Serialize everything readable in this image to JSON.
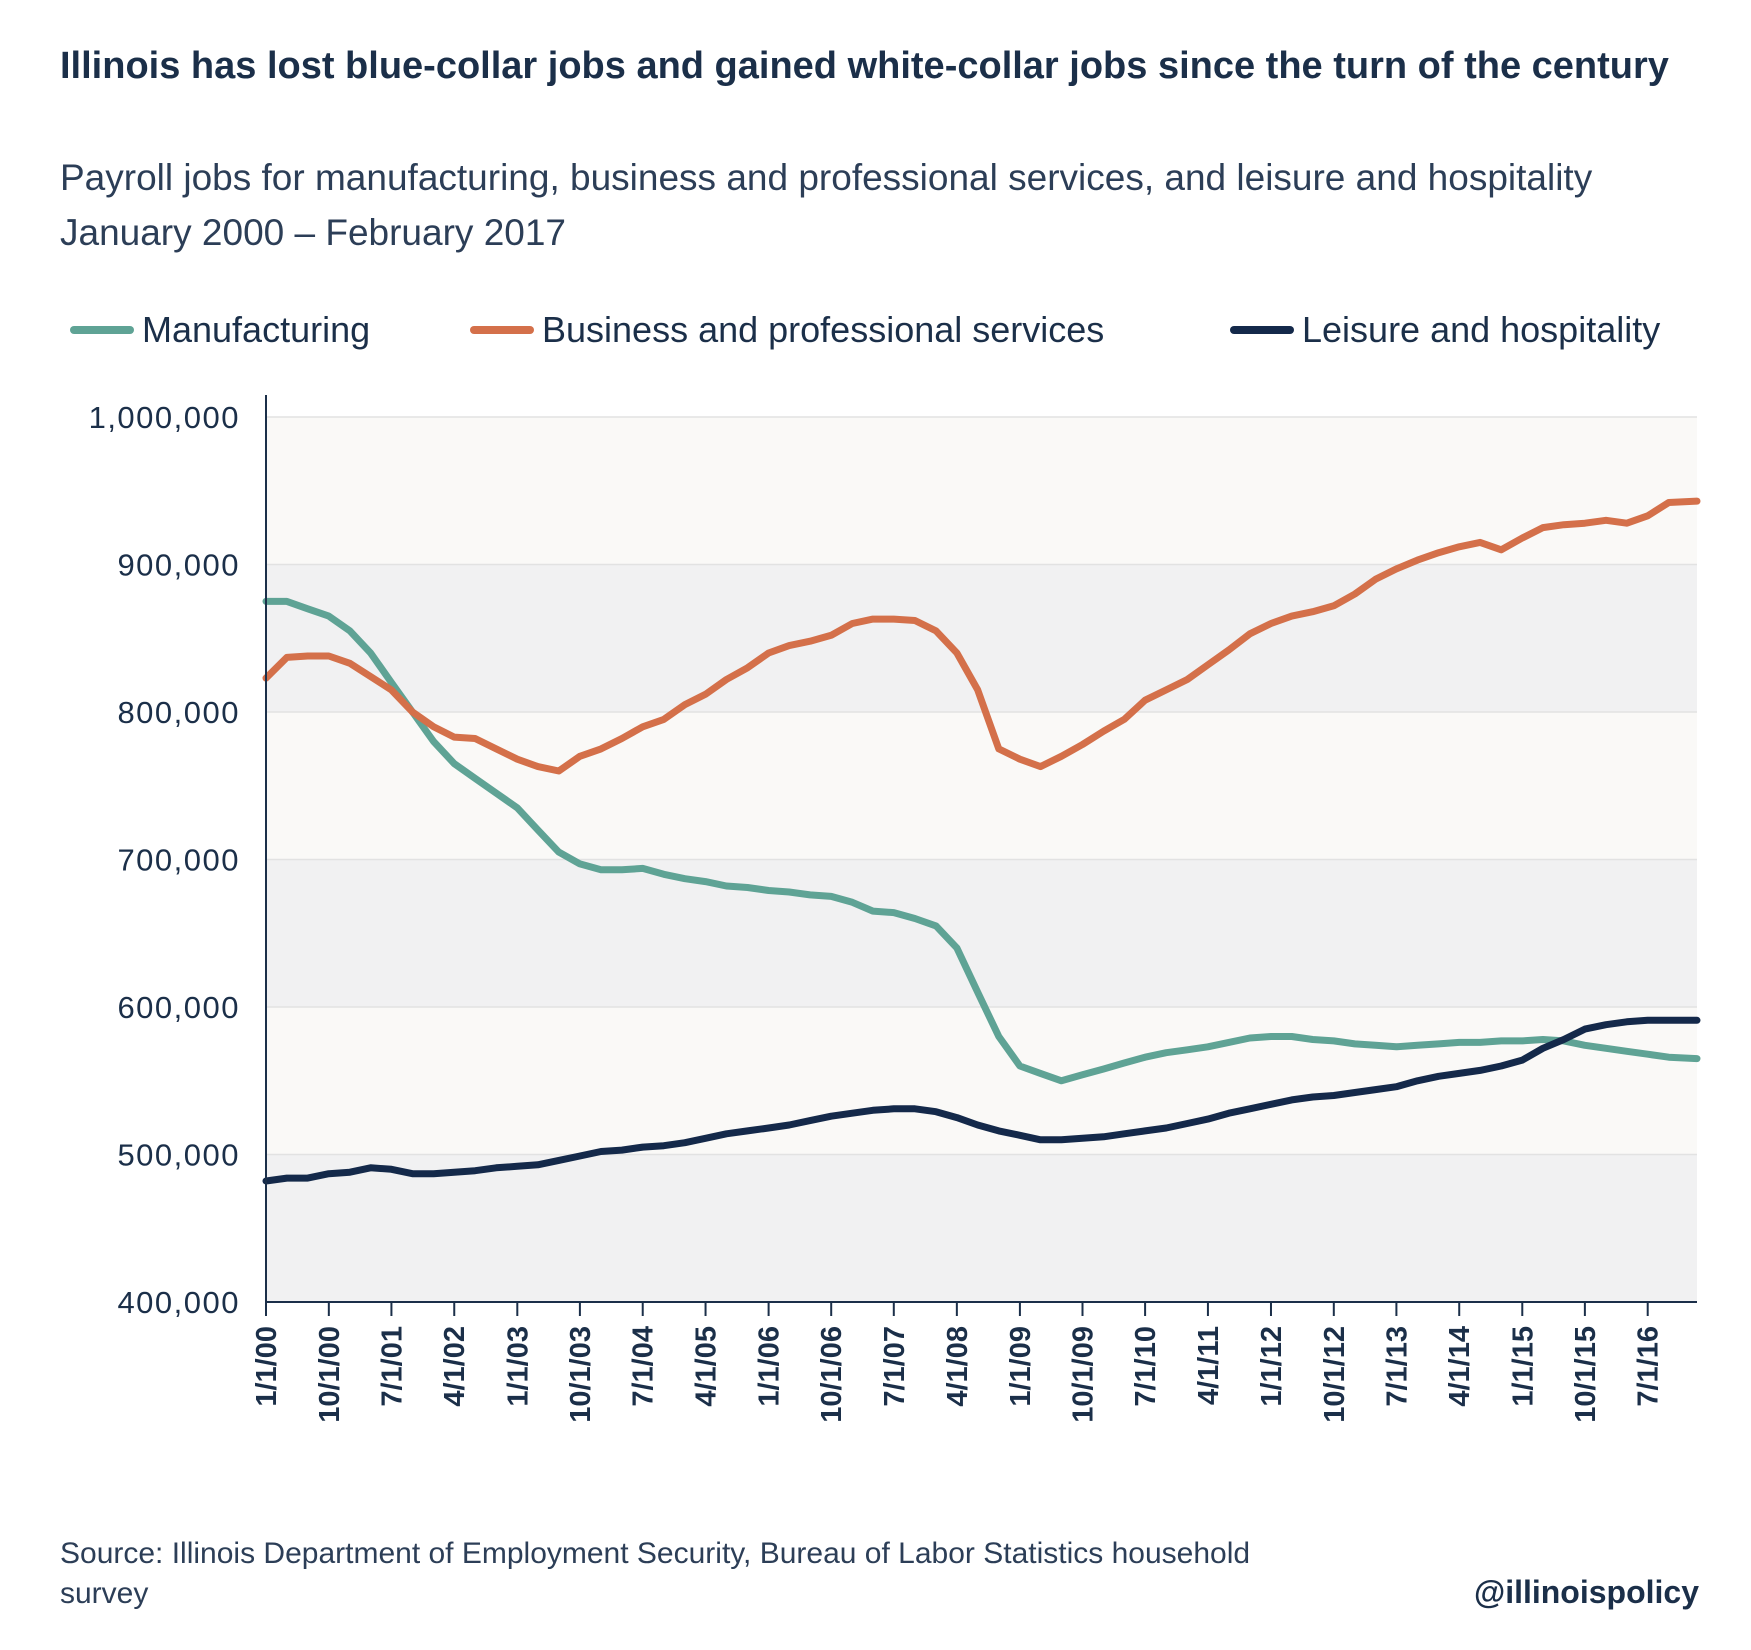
{
  "header": {
    "title": "Illinois has lost blue-collar jobs and gained white-collar jobs since the turn of the century",
    "subtitle": "Payroll jobs for manufacturing, business and professional services, and leisure and hospitality January 2000 – February 2017"
  },
  "footer": {
    "source": "Source: Illinois Department of Employment Security, Bureau of Labor Statistics household survey",
    "handle": "@illinoispolicy"
  },
  "colors": {
    "manufacturing": "#5fa395",
    "business": "#d4704a",
    "leisure": "#14294a",
    "band_light": "#faf9f7",
    "band_dark": "#f1f1f2",
    "axis": "#1b2f49"
  },
  "chart_data": {
    "type": "line",
    "title": "Illinois has lost blue-collar jobs and gained white-collar jobs since the turn of the century",
    "xlabel": "",
    "ylabel": "",
    "x_range": [
      "2000-01-01",
      "2017-02-01"
    ],
    "ylim": [
      400000,
      1000000
    ],
    "yticks": [
      400000,
      500000,
      600000,
      700000,
      800000,
      900000,
      1000000
    ],
    "ytick_labels": [
      "400,000",
      "500,000",
      "600,000",
      "700,000",
      "800,000",
      "900,000",
      "1,000,000"
    ],
    "xticks": [
      "2000-01-01",
      "2000-10-01",
      "2001-07-01",
      "2002-04-01",
      "2003-01-01",
      "2003-10-01",
      "2004-07-01",
      "2005-04-01",
      "2006-01-01",
      "2006-10-01",
      "2007-07-01",
      "2008-04-01",
      "2009-01-01",
      "2009-10-01",
      "2010-07-01",
      "2011-04-01",
      "2012-01-01",
      "2012-10-01",
      "2013-07-01",
      "2014-04-01",
      "2015-01-01",
      "2015-10-01",
      "2016-07-01"
    ],
    "xtick_labels": [
      "1/1/00",
      "10/1/00",
      "7/1/01",
      "4/1/02",
      "1/1/03",
      "10/1/03",
      "7/1/04",
      "4/1/05",
      "1/1/06",
      "10/1/06",
      "7/1/07",
      "4/1/08",
      "1/1/09",
      "10/1/09",
      "7/1/10",
      "4/1/11",
      "1/1/12",
      "10/1/12",
      "7/1/13",
      "4/1/14",
      "1/1/15",
      "10/1/15",
      "7/1/16"
    ],
    "legend_position": "top",
    "grid": true,
    "series": [
      {
        "name": "Manufacturing",
        "color": "#5fa395",
        "points": [
          [
            "2000-01-01",
            875000
          ],
          [
            "2000-04-01",
            875000
          ],
          [
            "2000-07-01",
            870000
          ],
          [
            "2000-10-01",
            865000
          ],
          [
            "2001-01-01",
            855000
          ],
          [
            "2001-04-01",
            840000
          ],
          [
            "2001-07-01",
            820000
          ],
          [
            "2001-10-01",
            800000
          ],
          [
            "2002-01-01",
            780000
          ],
          [
            "2002-04-01",
            765000
          ],
          [
            "2002-07-01",
            755000
          ],
          [
            "2002-10-01",
            745000
          ],
          [
            "2003-01-01",
            735000
          ],
          [
            "2003-04-01",
            720000
          ],
          [
            "2003-07-01",
            705000
          ],
          [
            "2003-10-01",
            697000
          ],
          [
            "2004-01-01",
            693000
          ],
          [
            "2004-04-01",
            693000
          ],
          [
            "2004-07-01",
            694000
          ],
          [
            "2004-10-01",
            690000
          ],
          [
            "2005-01-01",
            687000
          ],
          [
            "2005-04-01",
            685000
          ],
          [
            "2005-07-01",
            682000
          ],
          [
            "2005-10-01",
            681000
          ],
          [
            "2006-01-01",
            679000
          ],
          [
            "2006-04-01",
            678000
          ],
          [
            "2006-07-01",
            676000
          ],
          [
            "2006-10-01",
            675000
          ],
          [
            "2007-01-01",
            671000
          ],
          [
            "2007-04-01",
            665000
          ],
          [
            "2007-07-01",
            664000
          ],
          [
            "2007-10-01",
            660000
          ],
          [
            "2008-01-01",
            655000
          ],
          [
            "2008-04-01",
            640000
          ],
          [
            "2008-07-01",
            610000
          ],
          [
            "2008-10-01",
            580000
          ],
          [
            "2009-01-01",
            560000
          ],
          [
            "2009-04-01",
            555000
          ],
          [
            "2009-07-01",
            550000
          ],
          [
            "2009-10-01",
            554000
          ],
          [
            "2010-01-01",
            558000
          ],
          [
            "2010-04-01",
            562000
          ],
          [
            "2010-07-01",
            566000
          ],
          [
            "2010-10-01",
            569000
          ],
          [
            "2011-01-01",
            571000
          ],
          [
            "2011-04-01",
            573000
          ],
          [
            "2011-07-01",
            576000
          ],
          [
            "2011-10-01",
            579000
          ],
          [
            "2012-01-01",
            580000
          ],
          [
            "2012-04-01",
            580000
          ],
          [
            "2012-07-01",
            578000
          ],
          [
            "2012-10-01",
            577000
          ],
          [
            "2013-01-01",
            575000
          ],
          [
            "2013-04-01",
            574000
          ],
          [
            "2013-07-01",
            573000
          ],
          [
            "2013-10-01",
            574000
          ],
          [
            "2014-01-01",
            575000
          ],
          [
            "2014-04-01",
            576000
          ],
          [
            "2014-07-01",
            576000
          ],
          [
            "2014-10-01",
            577000
          ],
          [
            "2015-01-01",
            577000
          ],
          [
            "2015-04-01",
            578000
          ],
          [
            "2015-07-01",
            577000
          ],
          [
            "2015-10-01",
            574000
          ],
          [
            "2016-01-01",
            572000
          ],
          [
            "2016-04-01",
            570000
          ],
          [
            "2016-07-01",
            568000
          ],
          [
            "2016-10-01",
            566000
          ],
          [
            "2017-02-01",
            565000
          ]
        ]
      },
      {
        "name": "Business and professional services",
        "color": "#d4704a",
        "points": [
          [
            "2000-01-01",
            823000
          ],
          [
            "2000-04-01",
            837000
          ],
          [
            "2000-07-01",
            838000
          ],
          [
            "2000-10-01",
            838000
          ],
          [
            "2001-01-01",
            833000
          ],
          [
            "2001-04-01",
            824000
          ],
          [
            "2001-07-01",
            815000
          ],
          [
            "2001-10-01",
            800000
          ],
          [
            "2002-01-01",
            790000
          ],
          [
            "2002-04-01",
            783000
          ],
          [
            "2002-07-01",
            782000
          ],
          [
            "2002-10-01",
            775000
          ],
          [
            "2003-01-01",
            768000
          ],
          [
            "2003-04-01",
            763000
          ],
          [
            "2003-07-01",
            760000
          ],
          [
            "2003-10-01",
            770000
          ],
          [
            "2004-01-01",
            775000
          ],
          [
            "2004-04-01",
            782000
          ],
          [
            "2004-07-01",
            790000
          ],
          [
            "2004-10-01",
            795000
          ],
          [
            "2005-01-01",
            805000
          ],
          [
            "2005-04-01",
            812000
          ],
          [
            "2005-07-01",
            822000
          ],
          [
            "2005-10-01",
            830000
          ],
          [
            "2006-01-01",
            840000
          ],
          [
            "2006-04-01",
            845000
          ],
          [
            "2006-07-01",
            848000
          ],
          [
            "2006-10-01",
            852000
          ],
          [
            "2007-01-01",
            860000
          ],
          [
            "2007-04-01",
            863000
          ],
          [
            "2007-07-01",
            863000
          ],
          [
            "2007-10-01",
            862000
          ],
          [
            "2008-01-01",
            855000
          ],
          [
            "2008-04-01",
            840000
          ],
          [
            "2008-07-01",
            815000
          ],
          [
            "2008-10-01",
            775000
          ],
          [
            "2009-01-01",
            768000
          ],
          [
            "2009-04-01",
            763000
          ],
          [
            "2009-07-01",
            770000
          ],
          [
            "2009-10-01",
            778000
          ],
          [
            "2010-01-01",
            787000
          ],
          [
            "2010-04-01",
            795000
          ],
          [
            "2010-07-01",
            808000
          ],
          [
            "2010-10-01",
            815000
          ],
          [
            "2011-01-01",
            822000
          ],
          [
            "2011-04-01",
            832000
          ],
          [
            "2011-07-01",
            842000
          ],
          [
            "2011-10-01",
            853000
          ],
          [
            "2012-01-01",
            860000
          ],
          [
            "2012-04-01",
            865000
          ],
          [
            "2012-07-01",
            868000
          ],
          [
            "2012-10-01",
            872000
          ],
          [
            "2013-01-01",
            880000
          ],
          [
            "2013-04-01",
            890000
          ],
          [
            "2013-07-01",
            897000
          ],
          [
            "2013-10-01",
            903000
          ],
          [
            "2014-01-01",
            908000
          ],
          [
            "2014-04-01",
            912000
          ],
          [
            "2014-07-01",
            915000
          ],
          [
            "2014-10-01",
            910000
          ],
          [
            "2015-01-01",
            918000
          ],
          [
            "2015-04-01",
            925000
          ],
          [
            "2015-07-01",
            927000
          ],
          [
            "2015-10-01",
            928000
          ],
          [
            "2016-01-01",
            930000
          ],
          [
            "2016-04-01",
            928000
          ],
          [
            "2016-07-01",
            933000
          ],
          [
            "2016-10-01",
            942000
          ],
          [
            "2017-02-01",
            943000
          ]
        ]
      },
      {
        "name": "Leisure and hospitality",
        "color": "#14294a",
        "points": [
          [
            "2000-01-01",
            482000
          ],
          [
            "2000-04-01",
            484000
          ],
          [
            "2000-07-01",
            484000
          ],
          [
            "2000-10-01",
            487000
          ],
          [
            "2001-01-01",
            488000
          ],
          [
            "2001-04-01",
            491000
          ],
          [
            "2001-07-01",
            490000
          ],
          [
            "2001-10-01",
            487000
          ],
          [
            "2002-01-01",
            487000
          ],
          [
            "2002-04-01",
            488000
          ],
          [
            "2002-07-01",
            489000
          ],
          [
            "2002-10-01",
            491000
          ],
          [
            "2003-01-01",
            492000
          ],
          [
            "2003-04-01",
            493000
          ],
          [
            "2003-07-01",
            496000
          ],
          [
            "2003-10-01",
            499000
          ],
          [
            "2004-01-01",
            502000
          ],
          [
            "2004-04-01",
            503000
          ],
          [
            "2004-07-01",
            505000
          ],
          [
            "2004-10-01",
            506000
          ],
          [
            "2005-01-01",
            508000
          ],
          [
            "2005-04-01",
            511000
          ],
          [
            "2005-07-01",
            514000
          ],
          [
            "2005-10-01",
            516000
          ],
          [
            "2006-01-01",
            518000
          ],
          [
            "2006-04-01",
            520000
          ],
          [
            "2006-07-01",
            523000
          ],
          [
            "2006-10-01",
            526000
          ],
          [
            "2007-01-01",
            528000
          ],
          [
            "2007-04-01",
            530000
          ],
          [
            "2007-07-01",
            531000
          ],
          [
            "2007-10-01",
            531000
          ],
          [
            "2008-01-01",
            529000
          ],
          [
            "2008-04-01",
            525000
          ],
          [
            "2008-07-01",
            520000
          ],
          [
            "2008-10-01",
            516000
          ],
          [
            "2009-01-01",
            513000
          ],
          [
            "2009-04-01",
            510000
          ],
          [
            "2009-07-01",
            510000
          ],
          [
            "2009-10-01",
            511000
          ],
          [
            "2010-01-01",
            512000
          ],
          [
            "2010-04-01",
            514000
          ],
          [
            "2010-07-01",
            516000
          ],
          [
            "2010-10-01",
            518000
          ],
          [
            "2011-01-01",
            521000
          ],
          [
            "2011-04-01",
            524000
          ],
          [
            "2011-07-01",
            528000
          ],
          [
            "2011-10-01",
            531000
          ],
          [
            "2012-01-01",
            534000
          ],
          [
            "2012-04-01",
            537000
          ],
          [
            "2012-07-01",
            539000
          ],
          [
            "2012-10-01",
            540000
          ],
          [
            "2013-01-01",
            542000
          ],
          [
            "2013-04-01",
            544000
          ],
          [
            "2013-07-01",
            546000
          ],
          [
            "2013-10-01",
            550000
          ],
          [
            "2014-01-01",
            553000
          ],
          [
            "2014-04-01",
            555000
          ],
          [
            "2014-07-01",
            557000
          ],
          [
            "2014-10-01",
            560000
          ],
          [
            "2015-01-01",
            564000
          ],
          [
            "2015-04-01",
            572000
          ],
          [
            "2015-07-01",
            578000
          ],
          [
            "2015-10-01",
            585000
          ],
          [
            "2016-01-01",
            588000
          ],
          [
            "2016-04-01",
            590000
          ],
          [
            "2016-07-01",
            591000
          ],
          [
            "2016-10-01",
            591000
          ],
          [
            "2017-02-01",
            591000
          ]
        ]
      }
    ]
  }
}
